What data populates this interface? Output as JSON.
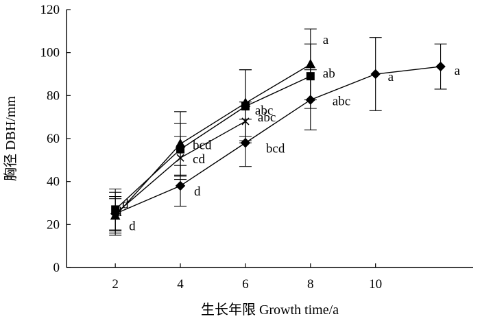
{
  "chart_data": {
    "type": "line",
    "xlabel": "生长年限 Growth time/a",
    "ylabel": "胸径 DBH/mm",
    "xlim": [
      0.5,
      13
    ],
    "ylim": [
      0,
      120
    ],
    "xticks": [
      2,
      4,
      6,
      8,
      10
    ],
    "yticks": [
      0,
      20,
      40,
      60,
      80,
      100,
      120
    ],
    "legend": "none",
    "series": [
      {
        "marker": "diamond",
        "points": [
          {
            "x": 2,
            "y": 25,
            "err": 8,
            "label": "d"
          },
          {
            "x": 4,
            "y": 38,
            "err": 9.5,
            "label": "d"
          },
          {
            "x": 6,
            "y": 58,
            "err": 11,
            "label": "bcd"
          },
          {
            "x": 8,
            "y": 78,
            "err": 14,
            "label": "abc"
          },
          {
            "x": 10,
            "y": 90,
            "err": 17,
            "label": "a"
          },
          {
            "x": 12,
            "y": 93.5,
            "err": 10.5,
            "label": "a"
          }
        ]
      },
      {
        "marker": "square",
        "points": [
          {
            "x": 2,
            "y": 27,
            "err": 9.5,
            "label": "d"
          },
          {
            "x": 4,
            "y": 55,
            "err": 12,
            "label": "bcd"
          },
          {
            "x": 6,
            "y": 75,
            "err": 17,
            "label": "abc"
          },
          {
            "x": 8,
            "y": 89,
            "err": 15,
            "label": "ab"
          }
        ]
      },
      {
        "marker": "triangle",
        "points": [
          {
            "x": 2,
            "y": 24,
            "err": 8,
            "label": "d"
          },
          {
            "x": 4,
            "y": 57.5,
            "err": 15,
            "label": ""
          },
          {
            "x": 6,
            "y": 76.5,
            "err": 15.5,
            "label": ""
          },
          {
            "x": 8,
            "y": 94.5,
            "err": 16.5,
            "label": "a"
          }
        ]
      },
      {
        "marker": "cross",
        "points": [
          {
            "x": 2,
            "y": 25,
            "err": 10,
            "label": ""
          },
          {
            "x": 4,
            "y": 51,
            "err": 10,
            "label": "cd"
          },
          {
            "x": 6,
            "y": 68,
            "err": 9,
            "label": "abc"
          }
        ]
      }
    ]
  }
}
